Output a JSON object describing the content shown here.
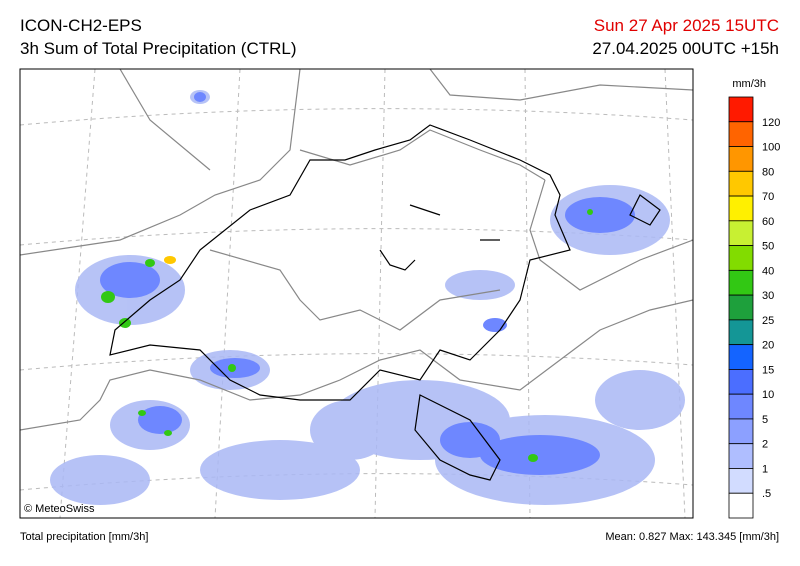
{
  "header": {
    "model": "ICON-CH2-EPS",
    "field": "3h Sum of Total Precipitation (CTRL)",
    "valid_time": "Sun 27 Apr 2025 15UTC",
    "run": "27.04.2025 00UTC +15h"
  },
  "map": {
    "credit": "© MeteoSwiss"
  },
  "legend": {
    "unit": "mm/3h",
    "colors": [
      "#ff1a00",
      "#ff6400",
      "#ff9600",
      "#ffc800",
      "#fff000",
      "#c8f032",
      "#82dc00",
      "#32c814",
      "#1ea03c",
      "#149696",
      "#1464ff",
      "#4b6eff",
      "#6e87ff",
      "#8ca0ff",
      "#afbeff",
      "#d2dcff",
      "#ffffff"
    ],
    "labels": [
      "120",
      "100",
      "80",
      "70",
      "60",
      "50",
      "40",
      "30",
      "25",
      "20",
      "15",
      "10",
      "5",
      "2",
      "1",
      ".5"
    ]
  },
  "footer": {
    "left": "Total precipitation [mm/3h]",
    "right": "Mean:  0.827 Max: 143.345 [mm/3h]"
  }
}
